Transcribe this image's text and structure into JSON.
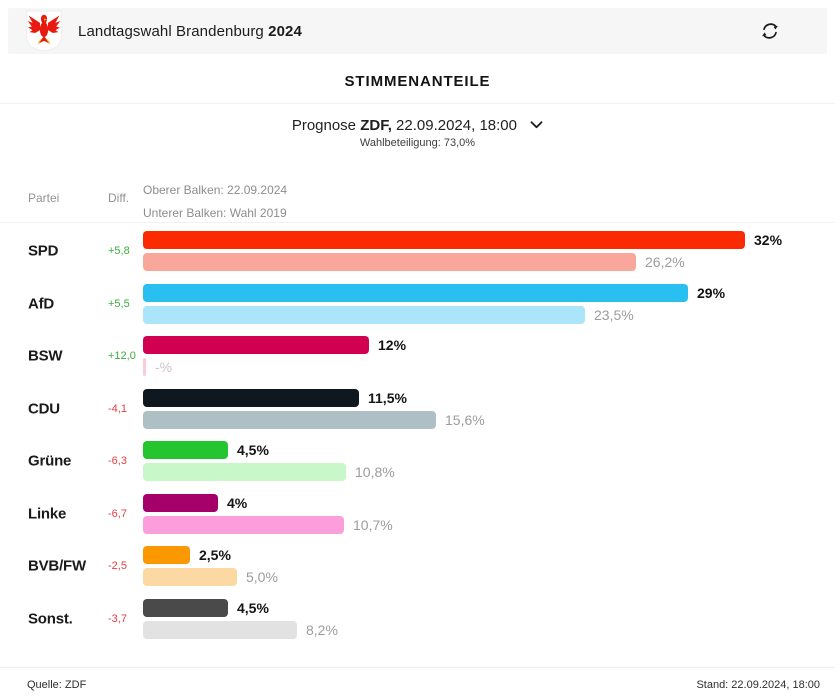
{
  "header": {
    "title": "Landtagswahl Brandenburg",
    "year": "2024",
    "logo": "brandenburg-eagle",
    "refresh_icon": "refresh"
  },
  "section": {
    "title": "STIMMENANTEILE",
    "prognose_prefix": "Prognose",
    "prognose_source": "ZDF,",
    "prognose_datetime": "22.09.2024, 18:00",
    "dropdown_icon": "chevron-down",
    "turnout": "Wahlbeteiligung: 73,0%"
  },
  "table": {
    "col_party": "Partei",
    "col_diff": "Diff.",
    "legend_top": "Oberer Balken: 22.09.2024",
    "legend_bottom": "Unterer Balken: Wahl 2019"
  },
  "colors": {
    "diff_positive": "#3cae3c",
    "diff_negative": "#e24040",
    "header_bg": "#f6f6f7",
    "gray_text": "#929292"
  },
  "chart_data": {
    "type": "bar",
    "title": "STIMMENANTEILE",
    "unit": "%",
    "scale_max": 32,
    "series_top": "Prognose 22.09.2024",
    "series_bottom": "Wahl 2019",
    "rows": [
      {
        "party": "SPD",
        "diff": "+5,8",
        "current": 32,
        "current_label": "32%",
        "previous": 26.2,
        "previous_label": "26,2%",
        "color": "#fc2a00",
        "color_light": "#f9a79a"
      },
      {
        "party": "AfD",
        "diff": "+5,5",
        "current": 29,
        "current_label": "29%",
        "previous": 23.5,
        "previous_label": "23,5%",
        "color": "#29bff1",
        "color_light": "#abe5f9"
      },
      {
        "party": "BSW",
        "diff": "+12,0",
        "current": 12,
        "current_label": "12%",
        "previous": 0,
        "previous_label": "-%",
        "color": "#d10050",
        "color_light": "#f8ccd9"
      },
      {
        "party": "CDU",
        "diff": "-4,1",
        "current": 11.5,
        "current_label": "11,5%",
        "previous": 15.6,
        "previous_label": "15,6%",
        "color": "#10181f",
        "color_light": "#aebfc5"
      },
      {
        "party": "Grüne",
        "diff": "-6,3",
        "current": 4.5,
        "current_label": "4,5%",
        "previous": 10.8,
        "previous_label": "10,8%",
        "color": "#24c52e",
        "color_light": "#c8f7c9"
      },
      {
        "party": "Linke",
        "diff": "-6,7",
        "current": 4,
        "current_label": "4%",
        "previous": 10.7,
        "previous_label": "10,7%",
        "color": "#a50069",
        "color_light": "#fb9edb"
      },
      {
        "party": "BVB/FW",
        "diff": "-2,5",
        "current": 2.5,
        "current_label": "2,5%",
        "previous": 5.0,
        "previous_label": "5,0%",
        "color": "#fb9800",
        "color_light": "#fcd8a3"
      },
      {
        "party": "Sonst.",
        "diff": "-3,7",
        "current": 4.5,
        "current_label": "4,5%",
        "previous": 8.2,
        "previous_label": "8,2%",
        "color": "#4a4a4a",
        "color_light": "#e2e2e2"
      }
    ]
  },
  "footer": {
    "source": "Quelle: ZDF",
    "stand": "Stand: 22.09.2024, 18:00"
  }
}
